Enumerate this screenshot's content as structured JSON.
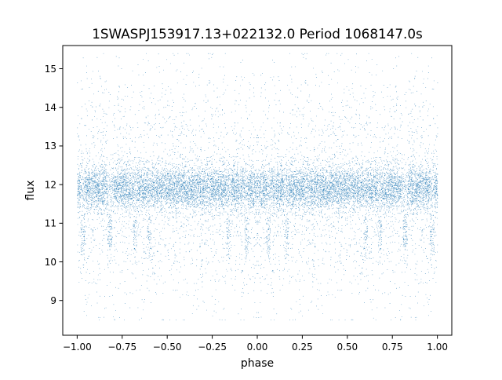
{
  "chart_data": {
    "type": "scatter",
    "title": "1SWASPJ153917.13+022132.0 Period 1068147.0s",
    "xlabel": "phase",
    "ylabel": "flux",
    "xlim": [
      -1.08,
      1.08
    ],
    "ylim": [
      8.1,
      15.6
    ],
    "xticks": [
      -1.0,
      -0.75,
      -0.5,
      -0.25,
      0.0,
      0.25,
      0.5,
      0.75,
      1.0
    ],
    "xtick_labels": [
      "−1.00",
      "−0.75",
      "−0.50",
      "−0.25",
      "0.00",
      "0.25",
      "0.50",
      "0.75",
      "1.00"
    ],
    "yticks": [
      9,
      10,
      11,
      12,
      13,
      14,
      15
    ],
    "ytick_labels": [
      "9",
      "10",
      "11",
      "12",
      "13",
      "14",
      "15"
    ],
    "grid": false,
    "legend": "none",
    "marker_color": "#1f77b4",
    "series": [
      {
        "x_range": [
          -1.0,
          1.0
        ],
        "y_center": 11.9,
        "y_core_halfwidth": 0.4,
        "y_min": 8.5,
        "y_max": 15.4,
        "symmetric_about_phase": 0.0,
        "approx_points": 16000,
        "dip_phases": [
          -0.97,
          -0.82,
          -0.68,
          0.06,
          0.16,
          0.6,
          0.82
        ],
        "dip_level": 10.7
      }
    ]
  }
}
